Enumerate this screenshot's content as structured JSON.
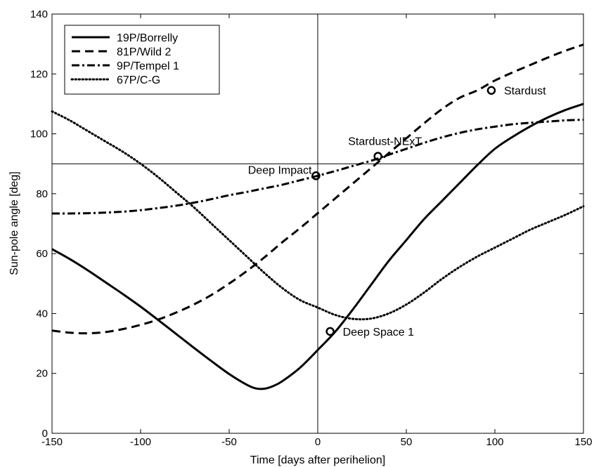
{
  "chart_data": {
    "type": "line",
    "xlabel": "Time [days after perihelion]",
    "ylabel": "Sun-pole angle [deg]",
    "xlim": [
      -150,
      150
    ],
    "ylim": [
      0,
      140
    ],
    "xticks": [
      -150,
      -100,
      -50,
      0,
      50,
      100,
      150
    ],
    "yticks": [
      0,
      20,
      40,
      60,
      80,
      100,
      120,
      140
    ],
    "reference_lines": {
      "x": 0,
      "y": 90
    },
    "legend_position": "top-left",
    "series": [
      {
        "name": "19P/Borrelly",
        "dash": "solid",
        "color": "#000000",
        "x": [
          -150,
          -140,
          -130,
          -120,
          -110,
          -100,
          -90,
          -80,
          -70,
          -60,
          -50,
          -40,
          -35,
          -30,
          -25,
          -20,
          -10,
          0,
          10,
          20,
          30,
          40,
          50,
          60,
          70,
          80,
          90,
          100,
          110,
          120,
          130,
          140,
          150
        ],
        "y": [
          61.5,
          58.2,
          54.5,
          50.5,
          46.5,
          42.3,
          37.8,
          33.2,
          28.6,
          24.1,
          19.8,
          16.2,
          15.0,
          14.9,
          15.8,
          17.4,
          21.9,
          27.8,
          34.0,
          41.5,
          49.5,
          57.5,
          64.5,
          71.5,
          77.5,
          83.5,
          89.5,
          95.0,
          99.0,
          102.5,
          105.5,
          108.0,
          110.0
        ]
      },
      {
        "name": "81P/Wild 2",
        "dash": "dashed",
        "color": "#000000",
        "x": [
          -150,
          -140,
          -130,
          -120,
          -110,
          -100,
          -90,
          -80,
          -70,
          -60,
          -50,
          -40,
          -30,
          -20,
          -10,
          0,
          10,
          20,
          30,
          40,
          50,
          60,
          70,
          80,
          90,
          100,
          110,
          120,
          130,
          140,
          150
        ],
        "y": [
          34.3,
          33.6,
          33.4,
          33.8,
          34.8,
          36.2,
          38.0,
          40.3,
          43.0,
          46.2,
          50.0,
          54.2,
          58.8,
          63.8,
          68.5,
          73.5,
          78.5,
          83.5,
          88.5,
          93.5,
          98.5,
          103.5,
          108.2,
          112.0,
          114.5,
          117.8,
          120.5,
          123.0,
          125.5,
          127.8,
          129.8
        ]
      },
      {
        "name": "9P/Tempel 1",
        "dash": "dashdot",
        "color": "#000000",
        "x": [
          -150,
          -140,
          -130,
          -120,
          -110,
          -100,
          -90,
          -80,
          -70,
          -60,
          -50,
          -40,
          -30,
          -20,
          -10,
          0,
          10,
          20,
          30,
          40,
          50,
          60,
          70,
          80,
          90,
          100,
          110,
          120,
          130,
          140,
          150
        ],
        "y": [
          73.4,
          73.4,
          73.5,
          73.7,
          74.0,
          74.5,
          75.2,
          76.0,
          77.0,
          78.2,
          79.5,
          80.6,
          81.8,
          83.0,
          84.5,
          86.0,
          87.6,
          89.3,
          91.0,
          93.0,
          95.0,
          97.0,
          98.8,
          100.3,
          101.5,
          102.4,
          103.2,
          103.7,
          104.1,
          104.5,
          104.7
        ]
      },
      {
        "name": "67P/C-G",
        "dash": "dotted",
        "color": "#000000",
        "x": [
          -150,
          -140,
          -130,
          -120,
          -110,
          -100,
          -90,
          -80,
          -70,
          -60,
          -50,
          -40,
          -30,
          -20,
          -10,
          0,
          10,
          20,
          30,
          40,
          50,
          60,
          70,
          80,
          90,
          100,
          110,
          120,
          130,
          140,
          150
        ],
        "y": [
          107.5,
          104.5,
          101.0,
          97.5,
          94.0,
          90.0,
          85.5,
          80.5,
          75.5,
          70.0,
          64.5,
          59.0,
          53.5,
          48.5,
          44.5,
          42.0,
          39.5,
          38.2,
          38.3,
          40.0,
          43.0,
          47.0,
          51.5,
          55.5,
          59.0,
          62.0,
          65.0,
          68.0,
          70.5,
          73.0,
          75.8
        ]
      }
    ],
    "annotations": [
      {
        "label": "Stardust",
        "x": 98,
        "y": 114.5,
        "side": "right"
      },
      {
        "label": "Stardust-NExT",
        "x": 34,
        "y": 92.5,
        "side": "above"
      },
      {
        "label": "Deep Impact",
        "x": -1,
        "y": 86,
        "side": "left"
      },
      {
        "label": "Deep Space 1",
        "x": 7,
        "y": 34,
        "side": "right"
      }
    ]
  }
}
